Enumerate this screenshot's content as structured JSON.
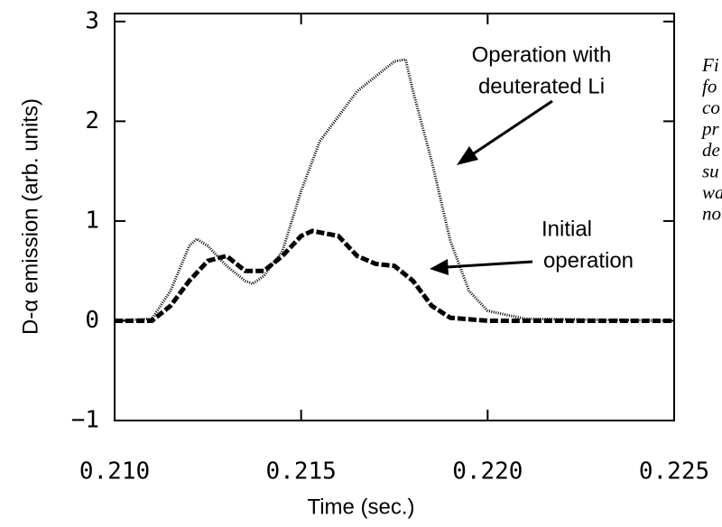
{
  "chart_data": {
    "type": "line",
    "xlabel": "Time (sec.)",
    "ylabel": "D-α emission (arb. units)",
    "xlim": [
      0.21,
      0.225
    ],
    "xticks": [
      {
        "value": 0.21,
        "label": "0.210"
      },
      0.215,
      {
        "value": 0.22,
        "label": "0.220"
      },
      0.225
    ],
    "ylim": [
      -1,
      3.08
    ],
    "yticks": [
      {
        "value": -1,
        "label": "−1"
      },
      0,
      1,
      2,
      3
    ],
    "series": [
      {
        "color": "#000000",
        "style": "dotted",
        "x": [
          0.21,
          0.211,
          0.2115,
          0.212,
          0.2122,
          0.2125,
          0.213,
          0.2135,
          0.2137,
          0.214,
          0.2145,
          0.215,
          0.2155,
          0.216,
          0.2165,
          0.217,
          0.2175,
          0.2178,
          0.218,
          0.2185,
          0.219,
          0.2195,
          0.22,
          0.221,
          0.225
        ],
        "values": [
          0,
          0.02,
          0.3,
          0.75,
          0.82,
          0.75,
          0.55,
          0.4,
          0.37,
          0.45,
          0.7,
          1.3,
          1.8,
          2.05,
          2.3,
          2.45,
          2.6,
          2.62,
          2.3,
          1.6,
          0.8,
          0.3,
          0.1,
          0.02,
          0
        ]
      },
      {
        "color": "#000000",
        "style": "dashed",
        "x": [
          0.21,
          0.211,
          0.2115,
          0.212,
          0.2125,
          0.213,
          0.2135,
          0.214,
          0.2145,
          0.215,
          0.2153,
          0.216,
          0.2165,
          0.217,
          0.2175,
          0.218,
          0.2185,
          0.219,
          0.22,
          0.225
        ],
        "values": [
          0,
          0,
          0.15,
          0.4,
          0.6,
          0.65,
          0.5,
          0.5,
          0.65,
          0.85,
          0.9,
          0.85,
          0.65,
          0.57,
          0.55,
          0.4,
          0.15,
          0.03,
          0,
          0
        ]
      }
    ],
    "annotations": [
      "Operation with",
      "deuterated Li",
      "Initial",
      "operation"
    ],
    "side_text": [
      "Fi",
      "fo",
      "co",
      "pr",
      "de",
      "su",
      "wa",
      "no"
    ]
  }
}
